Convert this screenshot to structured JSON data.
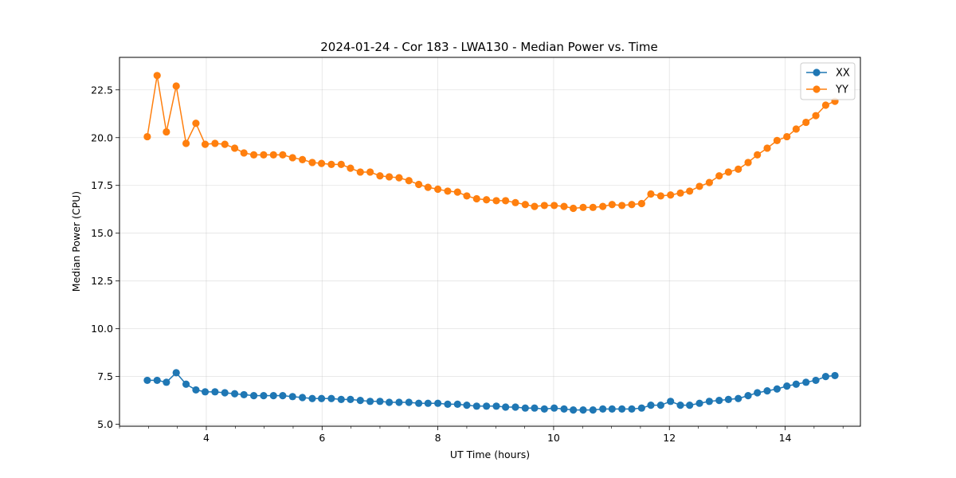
{
  "chart_data": {
    "type": "line",
    "title": "2024-01-24 - Cor 183 - LWA130 - Median Power vs. Time",
    "xlabel": "UT Time (hours)",
    "ylabel": "Median Power (CPU)",
    "xlim": [
      2.5,
      15.3
    ],
    "ylim": [
      4.9,
      24.2
    ],
    "xticks": [
      4,
      6,
      8,
      10,
      12,
      14
    ],
    "xtick_labels": [
      "4",
      "6",
      "8",
      "10",
      "12",
      "14"
    ],
    "yticks": [
      5.0,
      7.5,
      10.0,
      12.5,
      15.0,
      17.5,
      20.0,
      22.5
    ],
    "ytick_labels": [
      "5.0",
      "7.5",
      "10.0",
      "12.5",
      "15.0",
      "17.5",
      "20.0",
      "22.5"
    ],
    "grid": true,
    "legend": "top-right",
    "x": [
      2.98,
      3.15,
      3.31,
      3.48,
      3.65,
      3.82,
      3.98,
      4.15,
      4.32,
      4.49,
      4.65,
      4.82,
      4.99,
      5.16,
      5.32,
      5.49,
      5.66,
      5.83,
      5.99,
      6.16,
      6.33,
      6.49,
      6.66,
      6.83,
      7.0,
      7.16,
      7.33,
      7.5,
      7.67,
      7.83,
      8.0,
      8.17,
      8.34,
      8.5,
      8.67,
      8.84,
      9.01,
      9.17,
      9.34,
      9.51,
      9.67,
      9.84,
      10.01,
      10.18,
      10.34,
      10.51,
      10.68,
      10.85,
      11.01,
      11.18,
      11.35,
      11.52,
      11.68,
      11.85,
      12.02,
      12.19,
      12.35,
      12.52,
      12.69,
      12.86,
      13.02,
      13.19,
      13.36,
      13.52,
      13.69,
      13.86,
      14.03,
      14.19,
      14.36,
      14.53,
      14.7,
      14.86
    ],
    "series": [
      {
        "name": "XX",
        "color": "#1f77b4",
        "values": [
          7.3,
          7.3,
          7.2,
          7.7,
          7.1,
          6.8,
          6.7,
          6.7,
          6.65,
          6.6,
          6.55,
          6.5,
          6.5,
          6.5,
          6.5,
          6.45,
          6.4,
          6.35,
          6.35,
          6.35,
          6.3,
          6.3,
          6.25,
          6.2,
          6.2,
          6.15,
          6.15,
          6.15,
          6.1,
          6.1,
          6.1,
          6.05,
          6.05,
          6.0,
          5.95,
          5.95,
          5.95,
          5.9,
          5.9,
          5.85,
          5.85,
          5.8,
          5.85,
          5.8,
          5.75,
          5.75,
          5.75,
          5.8,
          5.8,
          5.8,
          5.8,
          5.85,
          6.0,
          6.0,
          6.2,
          6.0,
          6.0,
          6.1,
          6.2,
          6.25,
          6.3,
          6.35,
          6.5,
          6.65,
          6.75,
          6.85,
          7.0,
          7.1,
          7.2,
          7.3,
          7.5,
          7.55
        ]
      },
      {
        "name": "YY",
        "color": "#ff7f0e",
        "values": [
          20.05,
          23.25,
          20.3,
          22.7,
          19.7,
          20.75,
          19.65,
          19.7,
          19.65,
          19.45,
          19.2,
          19.1,
          19.1,
          19.1,
          19.1,
          18.95,
          18.85,
          18.7,
          18.65,
          18.6,
          18.6,
          18.4,
          18.2,
          18.2,
          18.0,
          17.95,
          17.9,
          17.75,
          17.55,
          17.4,
          17.3,
          17.2,
          17.15,
          16.95,
          16.8,
          16.75,
          16.7,
          16.7,
          16.6,
          16.5,
          16.4,
          16.45,
          16.45,
          16.4,
          16.3,
          16.35,
          16.35,
          16.4,
          16.5,
          16.45,
          16.5,
          16.55,
          17.05,
          16.95,
          17.0,
          17.1,
          17.2,
          17.45,
          17.65,
          18.0,
          18.2,
          18.35,
          18.7,
          19.1,
          19.45,
          19.85,
          20.05,
          20.45,
          20.8,
          21.15,
          21.7,
          21.9
        ]
      }
    ]
  }
}
